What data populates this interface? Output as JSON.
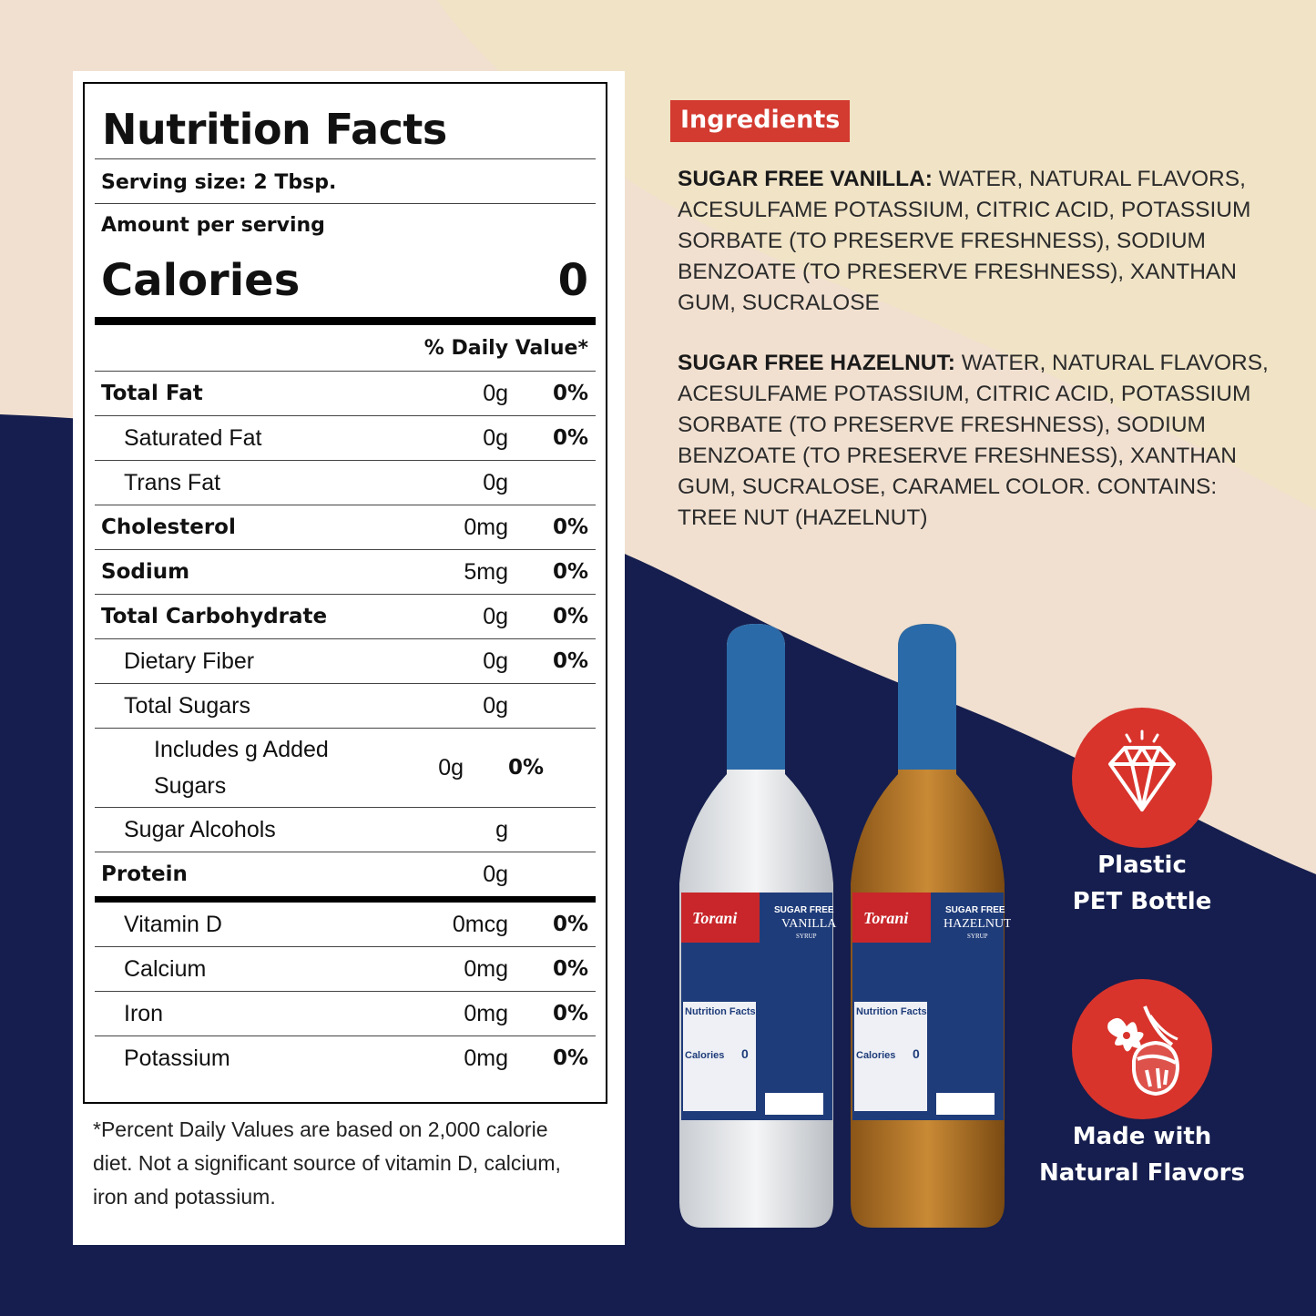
{
  "nutrition": {
    "title": "Nutrition Facts",
    "serving": "Serving size: 2 Tbsp.",
    "amount_per_serving": "Amount per serving",
    "calories_label": "Calories",
    "calories_value": "0",
    "dv_header": "% Daily Value*",
    "rows": [
      {
        "label": "Total Fat",
        "amount": "0g",
        "dv": "0%"
      },
      {
        "label": "Saturated Fat",
        "amount": "0g",
        "dv": "0%"
      },
      {
        "label": "Trans Fat",
        "amount": "0g",
        "dv": ""
      },
      {
        "label": "Cholesterol",
        "amount": "0mg",
        "dv": "0%"
      },
      {
        "label": "Sodium",
        "amount": "5mg",
        "dv": "0%"
      },
      {
        "label": "Total Carbohydrate",
        "amount": "0g",
        "dv": "0%"
      },
      {
        "label": "Dietary Fiber",
        "amount": "0g",
        "dv": "0%"
      },
      {
        "label": "Total Sugars",
        "amount": "0g",
        "dv": ""
      },
      {
        "label": "Includes g Added Sugars",
        "amount": "0g",
        "dv": "0%"
      },
      {
        "label": "Sugar Alcohols",
        "amount": "g",
        "dv": ""
      },
      {
        "label": "Protein",
        "amount": "0g",
        "dv": ""
      }
    ],
    "vitamins": [
      {
        "label": "Vitamin D",
        "amount": "0mcg",
        "dv": "0%"
      },
      {
        "label": "Calcium",
        "amount": "0mg",
        "dv": "0%"
      },
      {
        "label": "Iron",
        "amount": "0mg",
        "dv": "0%"
      },
      {
        "label": "Potassium",
        "amount": "0mg",
        "dv": "0%"
      }
    ],
    "footnote": "*Percent Daily Values are based on 2,000 calorie diet. Not a significant source of vitamin D, calcium, iron and potassium."
  },
  "ingredients": {
    "heading": "Ingredients",
    "vanilla_name": "SUGAR FREE VANILLA:",
    "vanilla_text": "WATER, NATURAL FLAVORS, ACESULFAME POTASSIUM, CITRIC ACID, POTASSIUM SORBATE (TO PRESERVE FRESHNESS), SODIUM BENZOATE (TO PRESERVE FRESHNESS), XANTHAN GUM, SUCRALOSE",
    "hazelnut_name": "SUGAR FREE HAZELNUT:",
    "hazelnut_text": "WATER, NATURAL FLAVORS, ACESULFAME POTASSIUM, CITRIC ACID, POTASSIUM SORBATE (TO PRESERVE FRESHNESS), SODIUM BENZOATE (TO PRESERVE FRESHNESS), XANTHAN GUM, SUCRALOSE, CARAMEL COLOR. CONTAINS: TREE NUT (HAZELNUT)"
  },
  "bottles": [
    {
      "brand": "Torani",
      "line": "SUGAR FREE",
      "flavor": "VANILLA",
      "type": "SYRUP",
      "panel_title": "Nutrition Facts",
      "calories_label": "Calories",
      "calories_value": "0"
    },
    {
      "brand": "Torani",
      "line": "SUGAR FREE",
      "flavor": "HAZELNUT",
      "type": "SYRUP",
      "panel_title": "Nutrition Facts",
      "calories_label": "Calories",
      "calories_value": "0"
    }
  ],
  "badges": [
    {
      "icon": "diamond-icon",
      "line1": "Plastic",
      "line2": "PET Bottle"
    },
    {
      "icon": "vanilla-hazelnut-icon",
      "line1": "Made with",
      "line2": "Natural Flavors"
    }
  ],
  "colors": {
    "navy": "#151e4e",
    "cream": "#f1e0d0",
    "tan": "#f0e3c6",
    "accent_red": "#d8342c",
    "cap_blue": "#2a6aa8",
    "hazelnut_syrup": "#b87a2a"
  }
}
